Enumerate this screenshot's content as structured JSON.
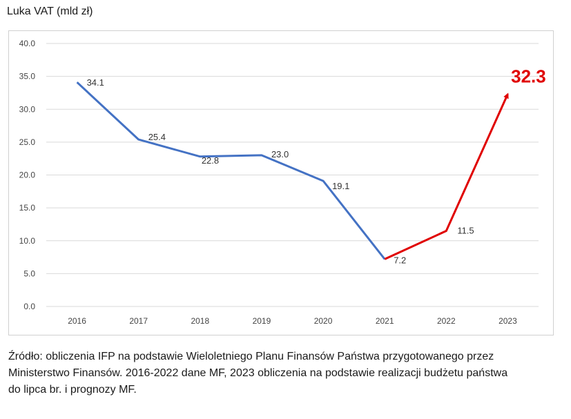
{
  "chart_data": {
    "type": "line",
    "title": "Luka VAT (mld zł)",
    "categories": [
      "2016",
      "2017",
      "2018",
      "2019",
      "2020",
      "2021",
      "2022",
      "2023"
    ],
    "ylim": [
      0,
      40
    ],
    "yticks": [
      "0.0",
      "5.0",
      "10.0",
      "15.0",
      "20.0",
      "25.0",
      "30.0",
      "35.0",
      "40.0"
    ],
    "grid": true,
    "series": [
      {
        "values": [
          34.1,
          25.4,
          22.8,
          23.0,
          19.1,
          7.2,
          null,
          null
        ],
        "color": "#4472c4"
      },
      {
        "values": [
          null,
          null,
          null,
          null,
          null,
          7.2,
          11.5,
          32.3
        ],
        "color": "#e00000"
      }
    ],
    "data_labels": [
      "34.1",
      "25.4",
      "22.8",
      "23.0",
      "19.1",
      "7.2",
      "11.5",
      "32.3"
    ],
    "highlight_color": "#e00000"
  },
  "source_lines": [
    "Źródło: obliczenia IFP na podstawie Wieloletniego Planu Finansów Państwa przygotowanego przez",
    "Ministerstwo Finansów. 2016-2022 dane MF, 2023 obliczenia na podstawie realizacji budżetu państwa",
    "do lipca br. i prognozy MF."
  ]
}
